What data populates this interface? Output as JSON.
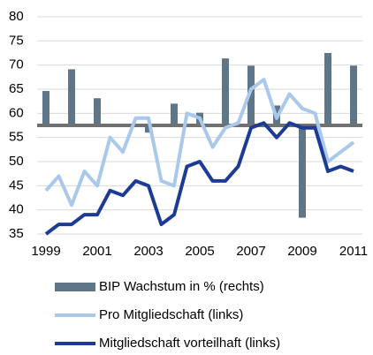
{
  "chart_data": {
    "type": "bar-line",
    "x": [
      1999,
      1999.5,
      2000,
      2000.5,
      2001,
      2001.5,
      2002,
      2002.5,
      2003,
      2003.5,
      2004,
      2004.5,
      2005,
      2005.5,
      2006,
      2006.5,
      2007,
      2007.5,
      2008,
      2008.5,
      2009,
      2009.5,
      2010,
      2010.5,
      2011
    ],
    "series": [
      {
        "name": "BIP Wachstum in % (rechts)",
        "color": "#5f7689",
        "axis": "y2",
        "kind": "bar",
        "x": [
          1999,
          2000,
          2001,
          2002,
          2003,
          2004,
          2005,
          2006,
          2007,
          2008,
          2009,
          2010,
          2011
        ],
        "values": [
          1.9,
          3.1,
          1.5,
          0.0,
          -0.4,
          1.2,
          0.7,
          3.7,
          3.3,
          1.1,
          -5.1,
          4.0,
          3.3
        ]
      },
      {
        "name": "Pro Mitgliedschaft (links)",
        "color": "#a9c8ea",
        "kind": "line",
        "values": [
          44,
          47,
          41,
          48,
          45,
          55,
          52,
          59,
          59,
          46,
          45,
          60,
          59,
          53,
          57,
          58,
          65,
          67,
          59,
          64,
          61,
          60,
          50,
          52,
          54
        ]
      },
      {
        "name": "Mitgliedschaft vorteilhaft (links)",
        "color": "#1c3b94",
        "kind": "line",
        "values": [
          35,
          37,
          37,
          39,
          39,
          44,
          43,
          46,
          45,
          37,
          39,
          49,
          50,
          46,
          46,
          49,
          57,
          58,
          55,
          58,
          57,
          57,
          48,
          49,
          48
        ]
      }
    ],
    "xlim": [
      1999,
      2011
    ],
    "xticks": [
      1999,
      2001,
      2003,
      2005,
      2007,
      2009,
      2011
    ],
    "ylim": [
      35,
      80
    ],
    "yticks": [
      35,
      40,
      45,
      50,
      55,
      60,
      65,
      70,
      75,
      80
    ],
    "y2lim": [
      -6,
      6
    ],
    "grid": true
  }
}
